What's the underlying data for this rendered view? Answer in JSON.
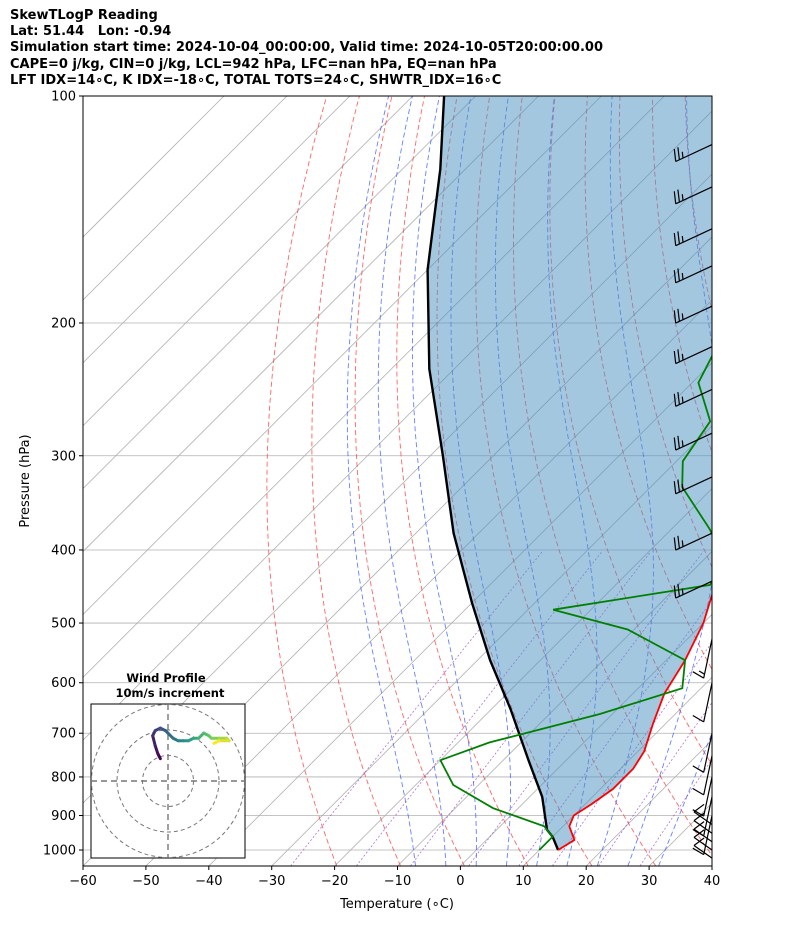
{
  "header": {
    "line1": "SkewTLogP Reading",
    "line2": "Lat: 51.44   Lon: -0.94",
    "line3": "Simulation start time: 2024-10-04_00:00:00, Valid time: 2024-10-05T20:00:00.00",
    "line4": "CAPE=0 j/kg, CIN=0 j/kg, LCL=942 hPa, LFC=nan hPa, EQ=nan hPa",
    "line5": "LFT IDX=14∘C, K IDX=-18∘C, TOTAL TOTS=24∘C, SHWTR_IDX=16∘C"
  },
  "chart_data": {
    "type": "line",
    "title": "SkewTLogP Reading",
    "xlabel": "Temperature (∘C)",
    "ylabel": "Pressure (hPa)",
    "xlim": [
      -60,
      40
    ],
    "ylim": [
      1050,
      100
    ],
    "y_scale": "log",
    "grid": true,
    "x_ticks": [
      "−60",
      "−50",
      "−40",
      "−30",
      "−20",
      "−10",
      "0",
      "10",
      "20",
      "30",
      "40"
    ],
    "y_ticks": [
      "100",
      "200",
      "300",
      "400",
      "500",
      "600",
      "700",
      "800",
      "900",
      "1000"
    ],
    "series": [
      {
        "role": "temperature",
        "color": "#ff0000",
        "points": [
          [
            13,
            1000
          ],
          [
            14,
            970
          ],
          [
            11,
            930
          ],
          [
            10,
            900
          ],
          [
            11,
            870
          ],
          [
            12,
            830
          ],
          [
            12,
            780
          ],
          [
            11,
            740
          ],
          [
            8,
            680
          ],
          [
            5,
            620
          ],
          [
            3,
            560
          ],
          [
            0,
            500
          ],
          [
            -3,
            460
          ],
          [
            -5,
            420
          ],
          [
            -9,
            380
          ],
          [
            -14,
            340
          ],
          [
            -19,
            300
          ],
          [
            -22,
            270
          ],
          [
            -26,
            240
          ],
          [
            -30,
            210
          ],
          [
            -32,
            190
          ],
          [
            -32,
            175
          ],
          [
            -29,
            165
          ],
          [
            -27,
            155
          ],
          [
            -30,
            150
          ],
          [
            -32,
            140
          ],
          [
            -36,
            125
          ],
          [
            -41,
            115
          ],
          [
            -45,
            107
          ],
          [
            -48,
            100
          ]
        ]
      },
      {
        "role": "dewpoint",
        "color": "#008000",
        "points": [
          [
            10,
            1000
          ],
          [
            10,
            960
          ],
          [
            7,
            930
          ],
          [
            -4,
            880
          ],
          [
            -14,
            820
          ],
          [
            -20,
            760
          ],
          [
            -15,
            720
          ],
          [
            -2,
            660
          ],
          [
            7,
            610
          ],
          [
            3,
            560
          ],
          [
            -11,
            510
          ],
          [
            -26,
            480
          ],
          [
            -5,
            445
          ],
          [
            -7,
            410
          ],
          [
            -14,
            375
          ],
          [
            -25,
            330
          ],
          [
            -29,
            305
          ],
          [
            -31,
            270
          ],
          [
            -39,
            240
          ],
          [
            -43,
            205
          ],
          [
            -48,
            175
          ],
          [
            -51,
            160
          ],
          [
            -55,
            145
          ],
          [
            -57,
            130
          ],
          [
            -55,
            115
          ],
          [
            -52,
            100
          ]
        ]
      },
      {
        "role": "parcel",
        "color": "#000000",
        "points": [
          [
            13,
            1000
          ],
          [
            10,
            960
          ],
          [
            8,
            940
          ],
          [
            2,
            850
          ],
          [
            -6,
            760
          ],
          [
            -17,
            650
          ],
          [
            -28,
            560
          ],
          [
            -40,
            470
          ],
          [
            -54,
            380
          ],
          [
            -68,
            300
          ],
          [
            -84,
            230
          ],
          [
            -100,
            170
          ],
          [
            -114,
            125
          ],
          [
            -125,
            100
          ]
        ]
      }
    ],
    "dry_adiabats_theta_K": [
      250,
      260,
      270,
      280,
      290,
      300,
      310,
      320,
      330,
      340,
      350,
      360,
      370,
      380,
      390,
      400,
      410,
      420,
      430,
      440
    ],
    "moist_adiabats_start_C_at_1000": [
      -10,
      -5,
      0,
      5,
      10,
      15,
      20,
      25,
      30
    ],
    "mixing_ratio_lines_gkg": [
      0.4,
      1,
      2,
      4,
      7,
      10,
      16,
      24
    ],
    "wind_barbs": [
      {
        "p": 1025,
        "speed_kt": 10
      },
      {
        "p": 1000,
        "speed_kt": 10
      },
      {
        "p": 975,
        "speed_kt": 10
      },
      {
        "p": 950,
        "speed_kt": 10
      },
      {
        "p": 925,
        "speed_kt": 10
      },
      {
        "p": 900,
        "speed_kt": 10
      },
      {
        "p": 850,
        "speed_kt": 10
      },
      {
        "p": 800,
        "speed_kt": 10
      },
      {
        "p": 750,
        "speed_kt": 10
      },
      {
        "p": 700,
        "speed_kt": 10
      },
      {
        "p": 600,
        "speed_kt": 10
      },
      {
        "p": 525,
        "speed_kt": 15
      },
      {
        "p": 440,
        "speed_kt": 25
      },
      {
        "p": 380,
        "speed_kt": 25
      },
      {
        "p": 320,
        "speed_kt": 25
      },
      {
        "p": 280,
        "speed_kt": 25
      },
      {
        "p": 245,
        "speed_kt": 25
      },
      {
        "p": 215,
        "speed_kt": 25
      },
      {
        "p": 190,
        "speed_kt": 25
      },
      {
        "p": 168,
        "speed_kt": 25
      },
      {
        "p": 150,
        "speed_kt": 25
      },
      {
        "p": 132,
        "speed_kt": 25
      },
      {
        "p": 116,
        "speed_kt": 25
      }
    ],
    "hodograph": {
      "title": "Wind Profile",
      "subtitle": "10m/s increment",
      "rings_ms": [
        10,
        20,
        30
      ],
      "points": [
        [
          -3,
          -3
        ],
        [
          -4,
          -1
        ],
        [
          -5,
          2
        ],
        [
          -6,
          6
        ],
        [
          -5,
          8
        ],
        [
          -3,
          9
        ],
        [
          -1,
          8
        ],
        [
          0,
          7
        ],
        [
          2,
          5
        ],
        [
          4,
          4
        ],
        [
          6,
          4
        ],
        [
          8,
          4
        ],
        [
          10,
          5
        ],
        [
          12,
          5
        ],
        [
          14,
          7
        ],
        [
          16,
          6
        ],
        [
          17,
          5
        ],
        [
          20,
          5
        ],
        [
          23,
          5
        ],
        [
          24,
          4
        ],
        [
          20,
          4
        ],
        [
          18,
          3
        ]
      ]
    }
  }
}
